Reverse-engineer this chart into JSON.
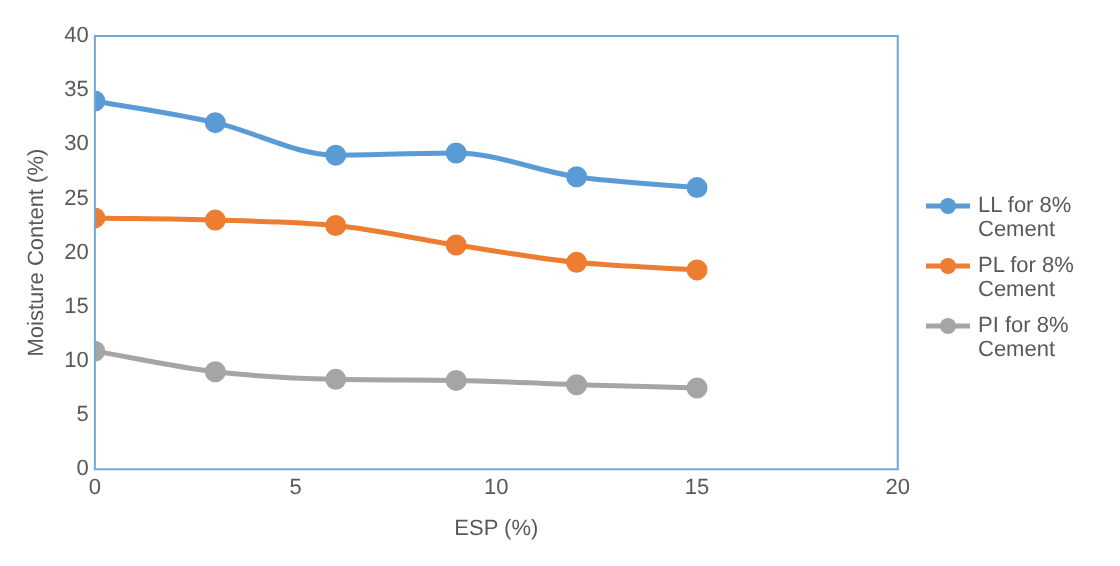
{
  "chart_data": {
    "type": "line",
    "xlabel": "ESP (%)",
    "ylabel": "Moisture Content (%)",
    "x": [
      0,
      3,
      6,
      9,
      12,
      15
    ],
    "series": [
      {
        "name": "LL for 8% Cement",
        "color": "#5b9bd5",
        "values": [
          34,
          32,
          29,
          29.2,
          27,
          26
        ]
      },
      {
        "name": "PL for 8% Cement",
        "color": "#ed7d31",
        "values": [
          23.2,
          23,
          22.5,
          20.7,
          19.1,
          18.4
        ]
      },
      {
        "name": "PI for 8% Cement",
        "color": "#a5a5a5",
        "values": [
          10.9,
          9,
          8.3,
          8.2,
          7.8,
          7.5
        ]
      }
    ],
    "xlim": [
      0,
      20
    ],
    "xticks": [
      0,
      5,
      10,
      15,
      20
    ],
    "ylim": [
      0,
      40
    ],
    "yticks": [
      0,
      5,
      10,
      15,
      20,
      25,
      30,
      35,
      40
    ],
    "grid": false,
    "legend": "right",
    "marker": "circle",
    "line_style": "solid"
  }
}
